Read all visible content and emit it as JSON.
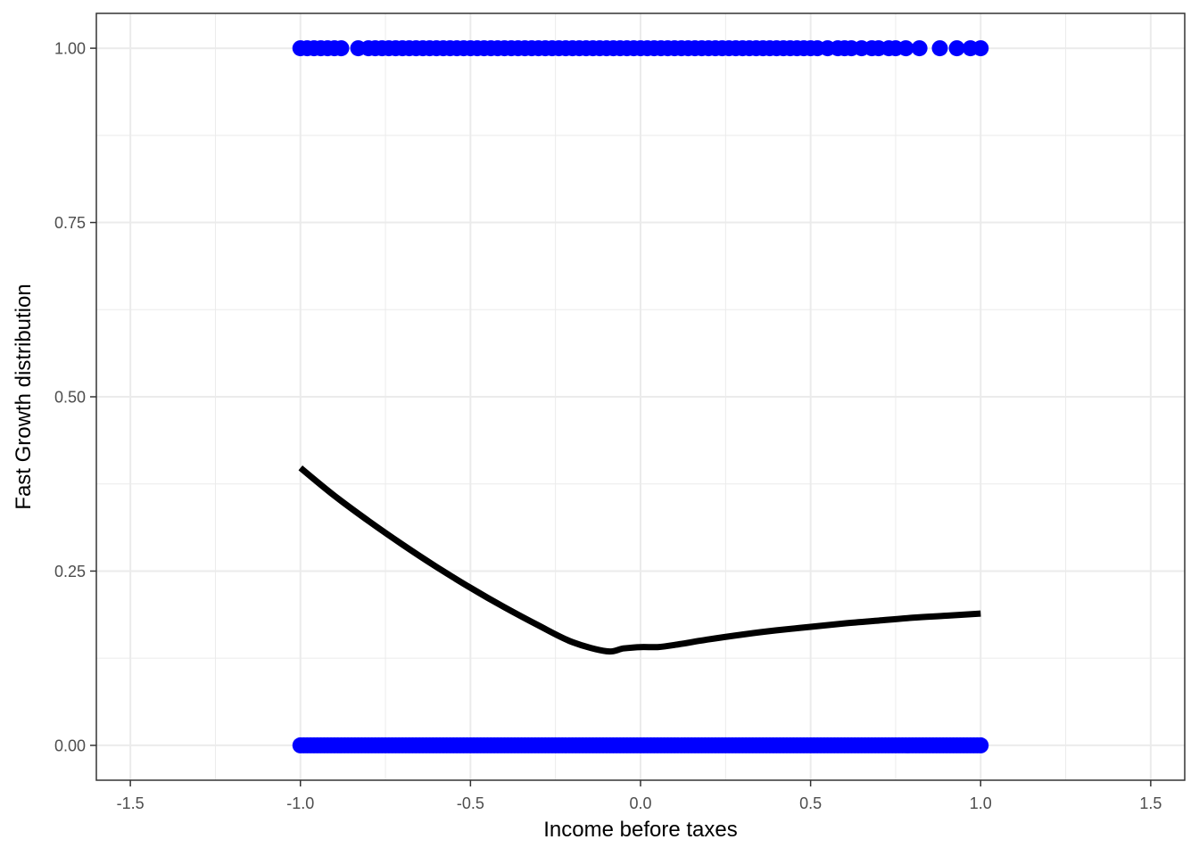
{
  "chart_data": {
    "type": "scatter",
    "title": "",
    "xlabel": "Income before taxes",
    "ylabel": "Fast Growth distribution",
    "xlim": [
      -1.6,
      1.6
    ],
    "ylim": [
      -0.05,
      1.05
    ],
    "x_ticks": [
      -1.5,
      -1.0,
      -0.5,
      0.0,
      0.5,
      1.0,
      1.5
    ],
    "x_tick_labels": [
      "-1.5",
      "-1.0",
      "-0.5",
      "0.0",
      "0.5",
      "1.0",
      "1.5"
    ],
    "y_ticks": [
      0.0,
      0.25,
      0.5,
      0.75,
      1.0
    ],
    "y_tick_labels": [
      "0.00",
      "0.25",
      "0.50",
      "0.75",
      "1.00"
    ],
    "grid": true,
    "legend": "none",
    "point_color": "#0000ff",
    "line_color": "#000000",
    "series": [
      {
        "kind": "points",
        "y": 1.0,
        "x": [
          -1.0,
          -0.98,
          -0.96,
          -0.94,
          -0.92,
          -0.9,
          -0.88,
          -0.83,
          -0.8,
          -0.78,
          -0.76,
          -0.74,
          -0.72,
          -0.7,
          -0.68,
          -0.66,
          -0.64,
          -0.62,
          -0.6,
          -0.58,
          -0.56,
          -0.54,
          -0.52,
          -0.5,
          -0.48,
          -0.46,
          -0.44,
          -0.42,
          -0.4,
          -0.38,
          -0.36,
          -0.34,
          -0.32,
          -0.3,
          -0.28,
          -0.26,
          -0.24,
          -0.22,
          -0.2,
          -0.18,
          -0.16,
          -0.14,
          -0.12,
          -0.1,
          -0.08,
          -0.06,
          -0.04,
          -0.02,
          0.0,
          0.02,
          0.04,
          0.06,
          0.08,
          0.1,
          0.12,
          0.14,
          0.16,
          0.18,
          0.2,
          0.22,
          0.24,
          0.26,
          0.28,
          0.3,
          0.32,
          0.34,
          0.36,
          0.38,
          0.4,
          0.42,
          0.44,
          0.46,
          0.48,
          0.5,
          0.52,
          0.55,
          0.58,
          0.6,
          0.62,
          0.65,
          0.68,
          0.7,
          0.73,
          0.75,
          0.78,
          0.82,
          0.88,
          0.93,
          0.97,
          1.0
        ]
      },
      {
        "kind": "points",
        "y": 0.0,
        "x_range": [
          -1.0,
          1.0
        ],
        "x_step": 0.01
      },
      {
        "kind": "smooth",
        "x": [
          -1.0,
          -0.9,
          -0.8,
          -0.7,
          -0.6,
          -0.5,
          -0.4,
          -0.3,
          -0.2,
          -0.1,
          -0.05,
          0.0,
          0.05,
          0.1,
          0.2,
          0.3,
          0.4,
          0.5,
          0.6,
          0.7,
          0.8,
          0.9,
          1.0
        ],
        "y": [
          0.398,
          0.358,
          0.322,
          0.288,
          0.256,
          0.226,
          0.198,
          0.172,
          0.148,
          0.135,
          0.139,
          0.141,
          0.141,
          0.144,
          0.152,
          0.159,
          0.165,
          0.17,
          0.175,
          0.179,
          0.183,
          0.186,
          0.189
        ]
      }
    ]
  }
}
